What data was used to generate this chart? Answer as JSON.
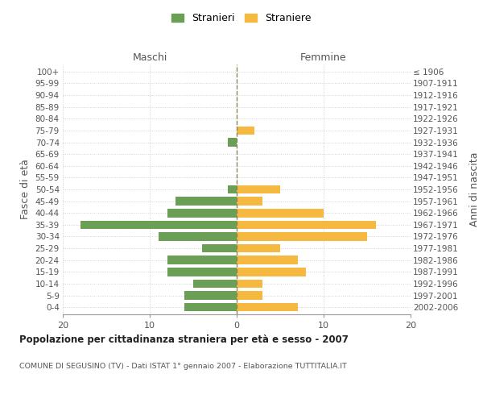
{
  "age_groups": [
    "0-4",
    "5-9",
    "10-14",
    "15-19",
    "20-24",
    "25-29",
    "30-34",
    "35-39",
    "40-44",
    "45-49",
    "50-54",
    "55-59",
    "60-64",
    "65-69",
    "70-74",
    "75-79",
    "80-84",
    "85-89",
    "90-94",
    "95-99",
    "100+"
  ],
  "birth_years": [
    "2002-2006",
    "1997-2001",
    "1992-1996",
    "1987-1991",
    "1982-1986",
    "1977-1981",
    "1972-1976",
    "1967-1971",
    "1962-1966",
    "1957-1961",
    "1952-1956",
    "1947-1951",
    "1942-1946",
    "1937-1941",
    "1932-1936",
    "1927-1931",
    "1922-1926",
    "1917-1921",
    "1912-1916",
    "1907-1911",
    "≤ 1906"
  ],
  "males": [
    6,
    6,
    5,
    8,
    8,
    4,
    9,
    18,
    8,
    7,
    1,
    0,
    0,
    0,
    1,
    0,
    0,
    0,
    0,
    0,
    0
  ],
  "females": [
    7,
    3,
    3,
    8,
    7,
    5,
    15,
    16,
    10,
    3,
    5,
    0,
    0,
    0,
    0,
    2,
    0,
    0,
    0,
    0,
    0
  ],
  "male_color": "#6a9f55",
  "female_color": "#f5b942",
  "title": "Popolazione per cittadinanza straniera per età e sesso - 2007",
  "subtitle": "COMUNE DI SEGUSINO (TV) - Dati ISTAT 1° gennaio 2007 - Elaborazione TUTTITALIA.IT",
  "xlabel_left": "Maschi",
  "xlabel_right": "Femmine",
  "ylabel_left": "Fasce di età",
  "ylabel_right": "Anni di nascita",
  "legend_male": "Stranieri",
  "legend_female": "Straniere",
  "xlim": 20,
  "background_color": "#ffffff",
  "grid_color": "#d0d0d0"
}
